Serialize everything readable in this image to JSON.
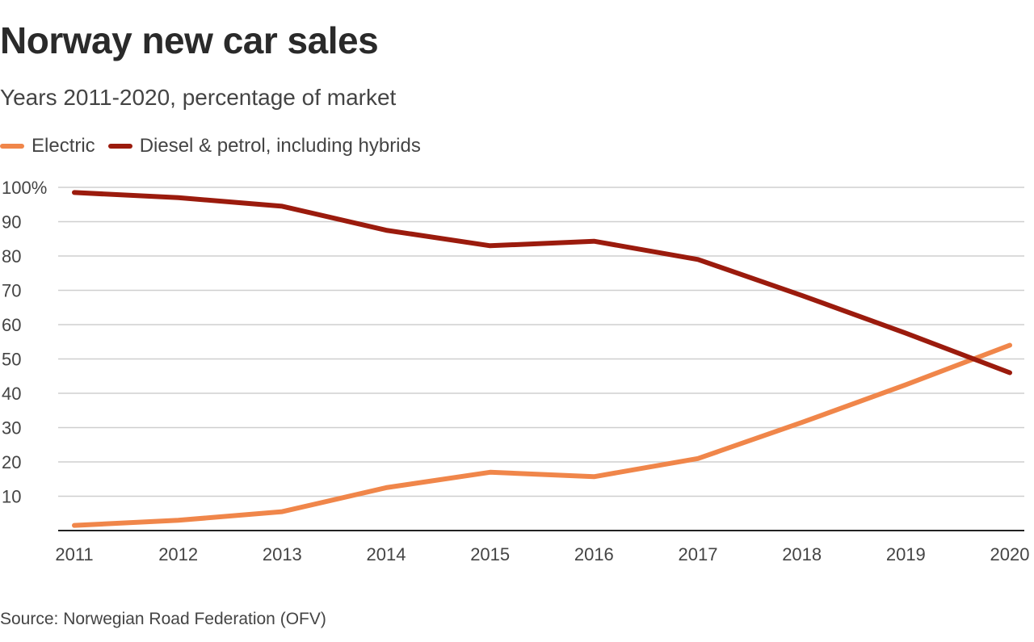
{
  "chart_data": {
    "type": "line",
    "title": "Norway new car sales",
    "subtitle": "Years 2011-2020, percentage of market",
    "xlabel": "",
    "ylabel": "",
    "x": [
      2011,
      2012,
      2013,
      2014,
      2015,
      2016,
      2017,
      2018,
      2019,
      2020
    ],
    "x_tick_labels": [
      "2011",
      "2012",
      "2013",
      "2014",
      "2015",
      "2016",
      "2017",
      "2018",
      "2019",
      "2020"
    ],
    "ylim": [
      0,
      100
    ],
    "y_ticks": [
      10,
      20,
      30,
      40,
      50,
      60,
      70,
      80,
      90,
      100
    ],
    "y_tick_labels": [
      "10",
      "20",
      "30",
      "40",
      "50",
      "60",
      "70",
      "80",
      "90",
      "100%"
    ],
    "grid": true,
    "legend_position": "top-left",
    "series": [
      {
        "name": "Electric",
        "color": "#f0864a",
        "values": [
          1.5,
          3.0,
          5.5,
          12.5,
          17.0,
          15.7,
          21.0,
          31.5,
          42.5,
          54.0
        ]
      },
      {
        "name": "Diesel & petrol, including hybrids",
        "color": "#9b1b0d",
        "values": [
          98.5,
          97.0,
          94.5,
          87.5,
          83.0,
          84.3,
          79.0,
          68.5,
          57.5,
          46.0
        ]
      }
    ],
    "source": "Source: Norwegian Road Federation (OFV)"
  }
}
